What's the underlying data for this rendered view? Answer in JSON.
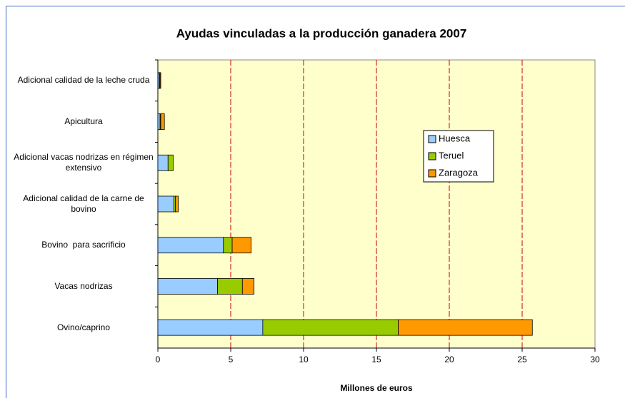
{
  "chart_data": {
    "type": "stacked-barh",
    "title": "Ayudas vinculadas a la producción ganadera 2007",
    "x_label": "Millones de euros",
    "categories": [
      "Adicional calidad de la leche cruda",
      "Apicultura",
      "Adicional vacas nodrizas en régimen extensivo",
      "Adicional calidad de la carne de bovino",
      "Bovino  para sacrificio",
      "Vacas nodrizas",
      "Ovino/caprino"
    ],
    "series": [
      {
        "name": "Huesca",
        "color": "#99ccff",
        "values": [
          0.1,
          0.15,
          0.7,
          1.1,
          4.5,
          4.1,
          7.2
        ]
      },
      {
        "name": "Teruel",
        "color": "#99cc00",
        "values": [
          0.05,
          0.05,
          0.35,
          0.1,
          0.6,
          1.7,
          9.3
        ]
      },
      {
        "name": "Zaragoza",
        "color": "#ff9900",
        "values": [
          0.05,
          0.25,
          0,
          0.2,
          1.3,
          0.8,
          9.2
        ]
      }
    ],
    "xlim": [
      0,
      30
    ],
    "xticks": [
      0,
      5,
      10,
      15,
      20,
      25,
      30
    ],
    "grid": true
  }
}
